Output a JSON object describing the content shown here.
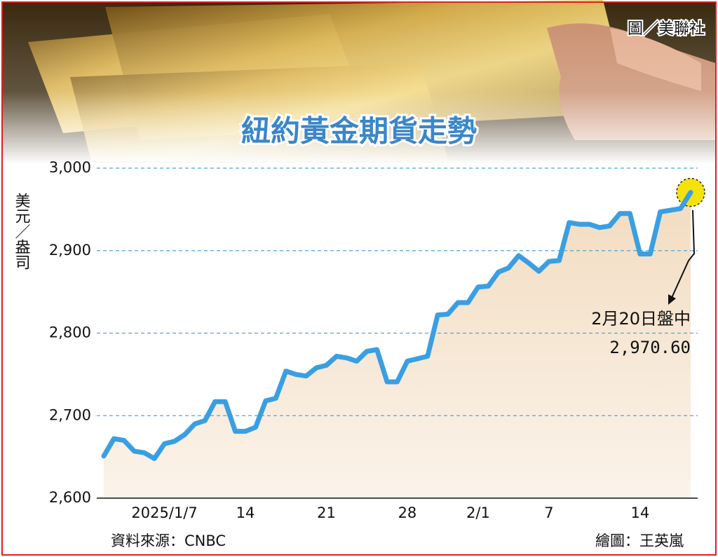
{
  "chart_data": {
    "type": "line",
    "title": "紐約黃金期貨走勢",
    "credit": "圖／美聯社",
    "y_label": "美元／盎司",
    "source": "資料來源：CNBC",
    "illustrator": "繪圖：王英嵐",
    "annotations": [
      "2月20日盤中",
      "2,970.60"
    ],
    "categories": [
      null,
      null,
      null,
      null,
      null,
      null,
      "2025/1/7",
      null,
      null,
      null,
      null,
      null,
      null,
      null,
      "14",
      null,
      null,
      null,
      null,
      null,
      null,
      null,
      "21",
      null,
      null,
      null,
      null,
      null,
      null,
      null,
      "28",
      null,
      null,
      null,
      null,
      null,
      null,
      "2/1",
      null,
      null,
      null,
      null,
      null,
      null,
      "7",
      null,
      null,
      null,
      null,
      null,
      null,
      null,
      null,
      "14",
      null,
      null,
      null,
      null,
      null
    ],
    "series": [
      {
        "name": null,
        "color": "#3a9fe2",
        "values": [
          2651,
          2672,
          2670,
          2657,
          2655,
          2648,
          2666,
          2669,
          2677,
          2690,
          2694,
          2717,
          2717,
          2681,
          2681,
          2686,
          2718,
          2721,
          2754,
          2750,
          2748,
          2758,
          2761,
          2772,
          2770,
          2766,
          2778,
          2780,
          2741,
          2741,
          2766,
          2769,
          2772,
          2822,
          2823,
          2837,
          2837,
          2856,
          2857,
          2874,
          2879,
          2894,
          2885,
          2875,
          2887,
          2888,
          2934,
          2932,
          2932,
          2928,
          2930,
          2945,
          2945,
          2896,
          2896,
          2947,
          2949,
          2951,
          2970.6
        ]
      }
    ],
    "ylim": [
      2600,
      3000
    ],
    "yticks": [
      {
        "value": 2600,
        "label": "2,600"
      },
      {
        "value": 2700,
        "label": "2,700"
      },
      {
        "value": 2800,
        "label": "2,800"
      },
      {
        "value": 2900,
        "label": "2,900"
      },
      {
        "value": 3000,
        "label": "3,000"
      }
    ],
    "grid": true
  }
}
